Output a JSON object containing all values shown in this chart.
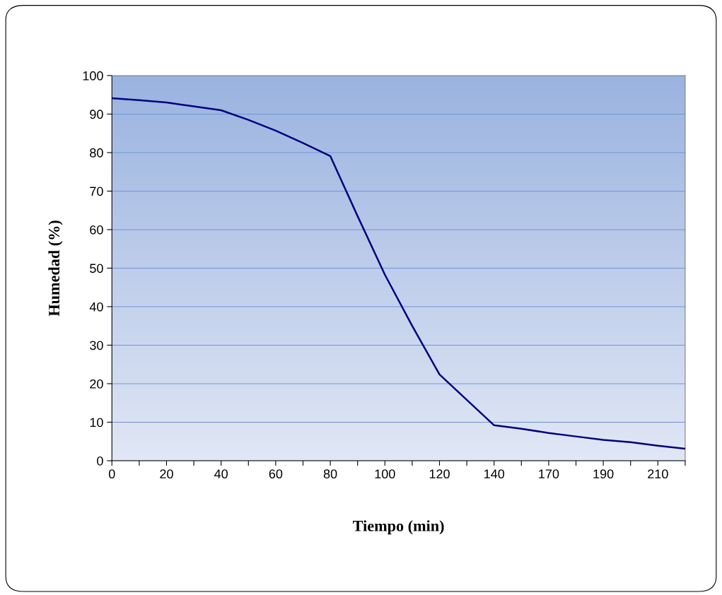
{
  "chart_data": {
    "type": "line",
    "xlabel": "Tiempo (min)",
    "ylabel": "Humedad (%)",
    "categories": [
      "0",
      null,
      "20",
      null,
      "40",
      null,
      "60",
      null,
      "80",
      null,
      "100",
      null,
      "120",
      null,
      "140",
      null,
      "170",
      null,
      "190",
      null,
      "210",
      null
    ],
    "series": [
      {
        "color": "#000080",
        "values": [
          94.1,
          93.6,
          93.0,
          92.0,
          91.0,
          88.5,
          85.7,
          82.5,
          79.1,
          63.5,
          48.3,
          35.0,
          22.4,
          15.8,
          9.2,
          8.3,
          7.2,
          6.3,
          5.4,
          4.8,
          3.9,
          3.1
        ]
      }
    ],
    "ylim": [
      0,
      100
    ],
    "yticks": [
      0,
      10,
      20,
      30,
      40,
      50,
      60,
      70,
      80,
      90,
      100
    ],
    "grid": "y",
    "legend": false,
    "marker": "none",
    "line_style": "solid"
  }
}
